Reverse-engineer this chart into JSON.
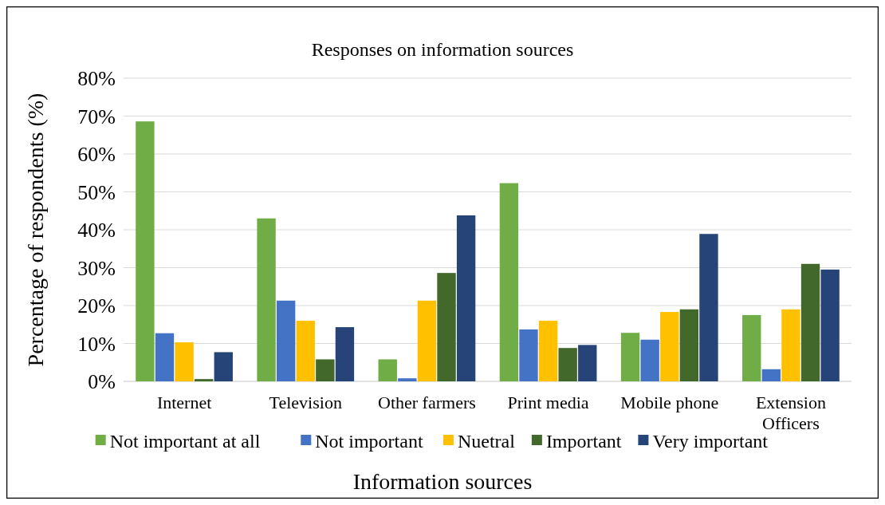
{
  "chart_data": {
    "type": "bar",
    "title": "Responses on information sources",
    "xlabel": "Information sources",
    "ylabel": "Percentage of respondents (%)",
    "categories": [
      "Internet",
      "Television",
      "Other farmers",
      "Print media",
      "Mobile phone",
      "Extension Officers"
    ],
    "series": [
      {
        "name": "Not important at all",
        "color": "#70ad47",
        "values": [
          68.6,
          43,
          5.8,
          52.3,
          12.8,
          17.5
        ]
      },
      {
        "name": "Not important",
        "color": "#4472c4",
        "values": [
          12.7,
          21.3,
          0.8,
          13.7,
          11,
          3.2
        ]
      },
      {
        "name": "Nuetral",
        "color": "#ffc000",
        "values": [
          10.3,
          16,
          21.3,
          16,
          18.3,
          19
        ]
      },
      {
        "name": "Important",
        "color": "#43682b",
        "values": [
          0.6,
          5.8,
          28.6,
          8.8,
          19,
          31
        ]
      },
      {
        "name": "Very important",
        "color": "#264478",
        "values": [
          7.7,
          14.3,
          43.8,
          9.6,
          38.9,
          29.5
        ]
      }
    ],
    "ylim": [
      0,
      80
    ],
    "yticks": [
      {
        "value": 0,
        "label": "0%"
      },
      {
        "value": 10,
        "label": "10%"
      },
      {
        "value": 20,
        "label": "20%"
      },
      {
        "value": 30,
        "label": "30%"
      },
      {
        "value": 40,
        "label": "40%"
      },
      {
        "value": 50,
        "label": "50%"
      },
      {
        "value": 60,
        "label": "60%"
      },
      {
        "value": 70,
        "label": "70%"
      },
      {
        "value": 80,
        "label": "80%"
      }
    ],
    "grid": "y",
    "legend": "bottom"
  }
}
